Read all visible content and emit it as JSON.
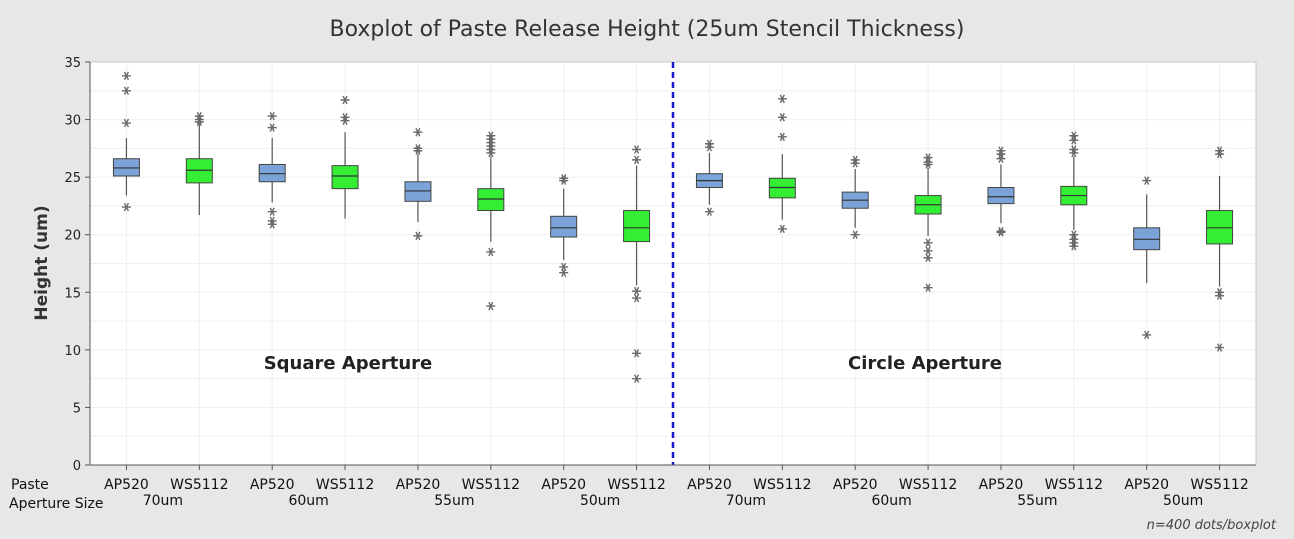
{
  "chart_data": {
    "type": "boxplot",
    "title": "Boxplot of Paste Release Height (25um Stencil Thickness)",
    "ylabel": "Height (um)",
    "ylim": [
      0,
      35
    ],
    "yticks": [
      0,
      5,
      10,
      15,
      20,
      25,
      30,
      35
    ],
    "grid": true,
    "row_labels": [
      "Paste",
      "Aperture Size"
    ],
    "groups": [
      "Square Aperture",
      "Circle Aperture"
    ],
    "aperture_sizes": [
      "70um",
      "60um",
      "55um",
      "50um",
      "70um",
      "60um",
      "55um",
      "50um"
    ],
    "footnote": "n=400 dots/boxplot",
    "colors": {
      "AP520": "#7ba3d8",
      "WS5112": "#33ee33",
      "divider": "#1a1acc",
      "outlier": "#6a6a6a"
    },
    "boxes": [
      {
        "paste": "AP520",
        "q1": 25.1,
        "median": 25.8,
        "q3": 26.6,
        "whisker_low": 23.4,
        "whisker_high": 28.4,
        "outliers": [
          33.8,
          32.5,
          29.7,
          22.4
        ]
      },
      {
        "paste": "WS5112",
        "q1": 24.5,
        "median": 25.6,
        "q3": 26.6,
        "whisker_low": 21.7,
        "whisker_high": 29.6,
        "outliers": [
          30.3,
          30.0,
          29.8
        ]
      },
      {
        "paste": "AP520",
        "q1": 24.6,
        "median": 25.3,
        "q3": 26.1,
        "whisker_low": 22.8,
        "whisker_high": 28.4,
        "outliers": [
          30.3,
          29.3,
          22.0,
          21.2,
          20.9
        ]
      },
      {
        "paste": "WS5112",
        "q1": 24.0,
        "median": 25.1,
        "q3": 26.0,
        "whisker_low": 21.4,
        "whisker_high": 28.9,
        "outliers": [
          31.7,
          30.2,
          29.9
        ]
      },
      {
        "paste": "AP520",
        "q1": 22.9,
        "median": 23.8,
        "q3": 24.6,
        "whisker_low": 21.1,
        "whisker_high": 27.0,
        "outliers": [
          28.9,
          27.5,
          27.3,
          19.9
        ]
      },
      {
        "paste": "WS5112",
        "q1": 22.1,
        "median": 23.1,
        "q3": 24.0,
        "whisker_low": 19.4,
        "whisker_high": 26.8,
        "outliers": [
          28.6,
          28.3,
          28.0,
          27.7,
          27.4,
          27.1,
          18.5,
          13.8
        ]
      },
      {
        "paste": "AP520",
        "q1": 19.8,
        "median": 20.6,
        "q3": 21.6,
        "whisker_low": 17.8,
        "whisker_high": 24.0,
        "outliers": [
          24.9,
          24.7,
          17.2,
          16.7
        ]
      },
      {
        "paste": "WS5112",
        "q1": 19.4,
        "median": 20.6,
        "q3": 22.1,
        "whisker_low": 15.6,
        "whisker_high": 26.0,
        "outliers": [
          27.4,
          26.5,
          15.1,
          14.5,
          9.7,
          7.5
        ]
      },
      {
        "paste": "AP520",
        "q1": 24.1,
        "median": 24.7,
        "q3": 25.3,
        "whisker_low": 22.6,
        "whisker_high": 27.1,
        "outliers": [
          27.9,
          27.6,
          22.0
        ]
      },
      {
        "paste": "WS5112",
        "q1": 23.2,
        "median": 24.1,
        "q3": 24.9,
        "whisker_low": 21.3,
        "whisker_high": 27.0,
        "outliers": [
          31.8,
          30.2,
          28.5,
          20.5
        ]
      },
      {
        "paste": "AP520",
        "q1": 22.3,
        "median": 23.0,
        "q3": 23.7,
        "whisker_low": 20.6,
        "whisker_high": 25.7,
        "outliers": [
          26.5,
          26.2,
          20.0
        ]
      },
      {
        "paste": "WS5112",
        "q1": 21.8,
        "median": 22.6,
        "q3": 23.4,
        "whisker_low": 19.9,
        "whisker_high": 25.8,
        "outliers": [
          26.7,
          26.3,
          26.1,
          19.3,
          18.6,
          18.0,
          15.4
        ]
      },
      {
        "paste": "AP520",
        "q1": 22.7,
        "median": 23.3,
        "q3": 24.1,
        "whisker_low": 21.0,
        "whisker_high": 26.1,
        "outliers": [
          27.3,
          27.0,
          26.6,
          20.3,
          20.2
        ]
      },
      {
        "paste": "WS5112",
        "q1": 22.6,
        "median": 23.4,
        "q3": 24.2,
        "whisker_low": 20.4,
        "whisker_high": 26.8,
        "outliers": [
          28.6,
          28.2,
          27.4,
          27.1,
          20.0,
          19.6,
          19.3,
          19.0
        ]
      },
      {
        "paste": "AP520",
        "q1": 18.7,
        "median": 19.6,
        "q3": 20.6,
        "whisker_low": 15.8,
        "whisker_high": 23.5,
        "outliers": [
          24.7,
          11.3
        ]
      },
      {
        "paste": "WS5112",
        "q1": 19.2,
        "median": 20.6,
        "q3": 22.1,
        "whisker_low": 15.5,
        "whisker_high": 25.1,
        "outliers": [
          27.3,
          27.0,
          15.0,
          14.7,
          10.2
        ]
      }
    ]
  }
}
